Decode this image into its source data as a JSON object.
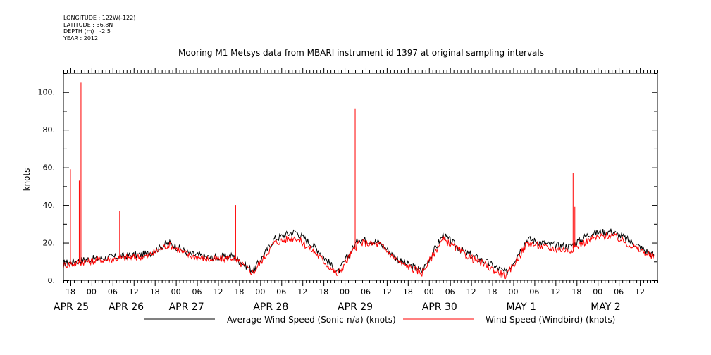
{
  "metadata": {
    "longitude": "LONGITUDE : 122W(-122)",
    "latitude": "LATITUDE : 36.8N",
    "depth": "DEPTH (m) : -2.5",
    "year": "YEAR : 2012"
  },
  "chart_data": {
    "type": "line",
    "title": "Mooring M1 Metsys data from MBARI instrument id 1397 at original sampling intervals",
    "ylabel": "knots",
    "xlabel": "",
    "ylim": [
      0,
      110
    ],
    "yticks": [
      0,
      20,
      40,
      60,
      80,
      100
    ],
    "ytick_labels": [
      "0.",
      "20.",
      "40.",
      "60.",
      "80.",
      "100."
    ],
    "x_start": "2012-04-25T16:00",
    "x_end": "2012-05-02T17:00",
    "hour_ticks": [
      "18",
      "00",
      "06",
      "12",
      "18",
      "00",
      "06",
      "12",
      "18",
      "00",
      "06",
      "12",
      "18",
      "00",
      "06",
      "12",
      "18",
      "00",
      "06",
      "12",
      "18",
      "00",
      "06",
      "12",
      "18",
      "00",
      "06",
      "12"
    ],
    "date_labels": [
      "APR 25",
      "APR 26",
      "APR 27",
      "APR 28",
      "APR 29",
      "APR 30",
      "MAY  1",
      "MAY  2"
    ],
    "grid": false,
    "legend_position": "bottom",
    "series": [
      {
        "name": "Average Wind Speed (Sonic-n/a) (knots)",
        "color": "#000000",
        "hours": [
          0,
          6,
          12,
          18,
          24,
          30,
          36,
          42,
          48,
          54,
          60,
          66,
          72,
          78,
          84,
          90,
          96,
          102,
          108,
          114,
          120,
          126,
          132,
          138,
          144,
          150,
          156,
          162,
          168
        ],
        "values": [
          9,
          11,
          12,
          13,
          14,
          20,
          14,
          12,
          13,
          5,
          22,
          26,
          17,
          4,
          22,
          20,
          10,
          5,
          24,
          15,
          10,
          4,
          22,
          19,
          18,
          25,
          26,
          20,
          13
        ]
      },
      {
        "name": "Wind Speed (Windbird) (knots)",
        "color": "#ff0000",
        "hours": [
          0,
          6,
          12,
          18,
          24,
          30,
          36,
          42,
          48,
          54,
          60,
          66,
          72,
          78,
          84,
          90,
          96,
          102,
          108,
          114,
          120,
          126,
          132,
          138,
          144,
          150,
          156,
          162,
          168
        ],
        "values": [
          8,
          10,
          11,
          12,
          13,
          19,
          13,
          11,
          12,
          4,
          20,
          23,
          14,
          3,
          20,
          19,
          9,
          4,
          22,
          14,
          8,
          2,
          20,
          17,
          16,
          22,
          24,
          18,
          12
        ],
        "spikes": [
          {
            "hour": 2,
            "value": 59
          },
          {
            "hour": 5,
            "value": 105
          },
          {
            "hour": 4.5,
            "value": 53
          },
          {
            "hour": 16,
            "value": 37
          },
          {
            "hour": 49,
            "value": 40
          },
          {
            "hour": 83,
            "value": 91
          },
          {
            "hour": 83.5,
            "value": 47
          },
          {
            "hour": 145,
            "value": 57
          },
          {
            "hour": 145.5,
            "value": 39
          }
        ]
      }
    ]
  }
}
